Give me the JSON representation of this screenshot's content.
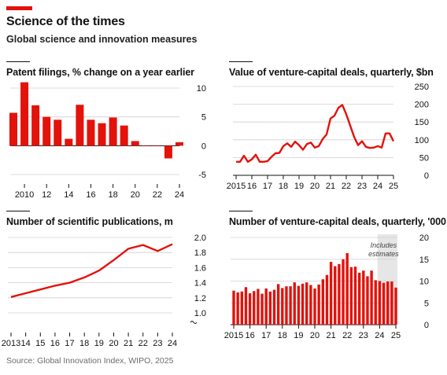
{
  "header": {
    "title": "Science of the times",
    "subtitle": "Global science and innovation measures"
  },
  "source": "Source: Global Innovation Index, WIPO, 2025",
  "colors": {
    "accent": "#e3120b",
    "series": "#e3120b",
    "grid": "#d0d0d0",
    "shade": "#e6e6e6"
  },
  "chart_data": [
    {
      "id": "patents",
      "type": "bar",
      "title": "Patent filings, % change on a year earlier",
      "ylim": [
        -5,
        10
      ],
      "yticks": [
        10,
        5,
        0,
        -5
      ],
      "yticklabels": [
        "10",
        "5",
        "0",
        "-5"
      ],
      "x": [
        2009,
        2010,
        2011,
        2012,
        2013,
        2014,
        2015,
        2016,
        2017,
        2018,
        2019,
        2020,
        2021,
        2022,
        2023,
        2024
      ],
      "values": [
        5.7,
        11.0,
        7.0,
        5.0,
        4.5,
        1.2,
        7.1,
        4.5,
        3.9,
        4.9,
        3.5,
        0.8,
        0.0,
        0.0,
        -2.2,
        0.6
      ],
      "xticks": [
        2010,
        2012,
        2014,
        2016,
        2018,
        2020,
        2022,
        2024
      ],
      "xticklabels": [
        "2010",
        "12",
        "14",
        "16",
        "18",
        "20",
        "22",
        "24"
      ]
    },
    {
      "id": "vc-value",
      "type": "line",
      "title": "Value of venture-capital deals, quarterly, $bn",
      "ylim": [
        0,
        250
      ],
      "yticks": [
        250,
        200,
        150,
        100,
        50,
        0
      ],
      "yticklabels": [
        "250",
        "200",
        "150",
        "100",
        "50",
        "0"
      ],
      "x": [
        2015.0,
        2015.25,
        2015.5,
        2015.75,
        2016.0,
        2016.25,
        2016.5,
        2016.75,
        2017.0,
        2017.25,
        2017.5,
        2017.75,
        2018.0,
        2018.25,
        2018.5,
        2018.75,
        2019.0,
        2019.25,
        2019.5,
        2019.75,
        2020.0,
        2020.25,
        2020.5,
        2020.75,
        2021.0,
        2021.25,
        2021.5,
        2021.75,
        2022.0,
        2022.25,
        2022.5,
        2022.75,
        2023.0,
        2023.25,
        2023.5,
        2023.75,
        2024.0,
        2024.25,
        2024.5,
        2024.75,
        2025.0
      ],
      "values": [
        38,
        38,
        55,
        38,
        45,
        58,
        38,
        38,
        40,
        52,
        62,
        63,
        82,
        90,
        80,
        95,
        85,
        72,
        88,
        92,
        78,
        82,
        102,
        115,
        160,
        168,
        190,
        198,
        172,
        140,
        108,
        85,
        96,
        80,
        77,
        78,
        82,
        78,
        118,
        118,
        96
      ],
      "xticks": [
        2015,
        2016,
        2017,
        2018,
        2019,
        2020,
        2021,
        2022,
        2023,
        2024,
        2025
      ],
      "xticklabels": [
        "2015",
        "16",
        "17",
        "18",
        "19",
        "20",
        "21",
        "22",
        "23",
        "24",
        "25"
      ]
    },
    {
      "id": "publications",
      "type": "line",
      "title": "Number of scientific publications, m",
      "ylim": [
        1.0,
        2.0
      ],
      "yticks": [
        2.0,
        1.8,
        1.6,
        1.4,
        1.2,
        1.0
      ],
      "yticklabels": [
        "2.0",
        "1.8",
        "1.6",
        "1.4",
        "1.2",
        "1.0"
      ],
      "axis_break": true,
      "x": [
        2013,
        2014,
        2015,
        2016,
        2017,
        2018,
        2019,
        2020,
        2021,
        2022,
        2023,
        2024
      ],
      "values": [
        1.21,
        1.26,
        1.31,
        1.36,
        1.4,
        1.47,
        1.56,
        1.7,
        1.85,
        1.9,
        1.82,
        1.91
      ],
      "xticks": [
        2013,
        2014,
        2015,
        2016,
        2017,
        2018,
        2019,
        2020,
        2021,
        2022,
        2023,
        2024
      ],
      "xticklabels": [
        "2013",
        "14",
        "15",
        "16",
        "17",
        "18",
        "19",
        "20",
        "21",
        "22",
        "23",
        "24"
      ]
    },
    {
      "id": "vc-count",
      "type": "bar",
      "title": "Number of venture-capital deals, quarterly, '000",
      "ylim": [
        0,
        20
      ],
      "yticks": [
        20,
        15,
        10,
        5,
        0
      ],
      "yticklabels": [
        "20",
        "15",
        "10",
        "5",
        "0"
      ],
      "annotation": "Includes estimates",
      "shade_from": 2024.0,
      "x": [
        2015.0,
        2015.25,
        2015.5,
        2015.75,
        2016.0,
        2016.25,
        2016.5,
        2016.75,
        2017.0,
        2017.25,
        2017.5,
        2017.75,
        2018.0,
        2018.25,
        2018.5,
        2018.75,
        2019.0,
        2019.25,
        2019.5,
        2019.75,
        2020.0,
        2020.25,
        2020.5,
        2020.75,
        2021.0,
        2021.25,
        2021.5,
        2021.75,
        2022.0,
        2022.25,
        2022.5,
        2022.75,
        2023.0,
        2023.25,
        2023.5,
        2023.75,
        2024.0,
        2024.25,
        2024.5,
        2024.75,
        2025.0
      ],
      "values": [
        7.8,
        7.4,
        7.6,
        8.6,
        7.2,
        7.7,
        8.2,
        7.1,
        8.3,
        7.6,
        8.0,
        9.3,
        8.4,
        8.8,
        8.8,
        9.7,
        8.9,
        9.4,
        9.7,
        9.1,
        8.3,
        9.2,
        10.4,
        11.4,
        14.4,
        13.4,
        13.9,
        15.0,
        16.4,
        13.2,
        13.3,
        11.9,
        12.4,
        11.1,
        12.4,
        10.2,
        10.0,
        9.6,
        9.9,
        9.9,
        8.5
      ],
      "xticks": [
        2015,
        2016,
        2017,
        2018,
        2019,
        2020,
        2021,
        2022,
        2023,
        2024,
        2025
      ],
      "xticklabels": [
        "2015",
        "16",
        "17",
        "18",
        "19",
        "20",
        "21",
        "22",
        "23",
        "24",
        "25"
      ]
    }
  ]
}
